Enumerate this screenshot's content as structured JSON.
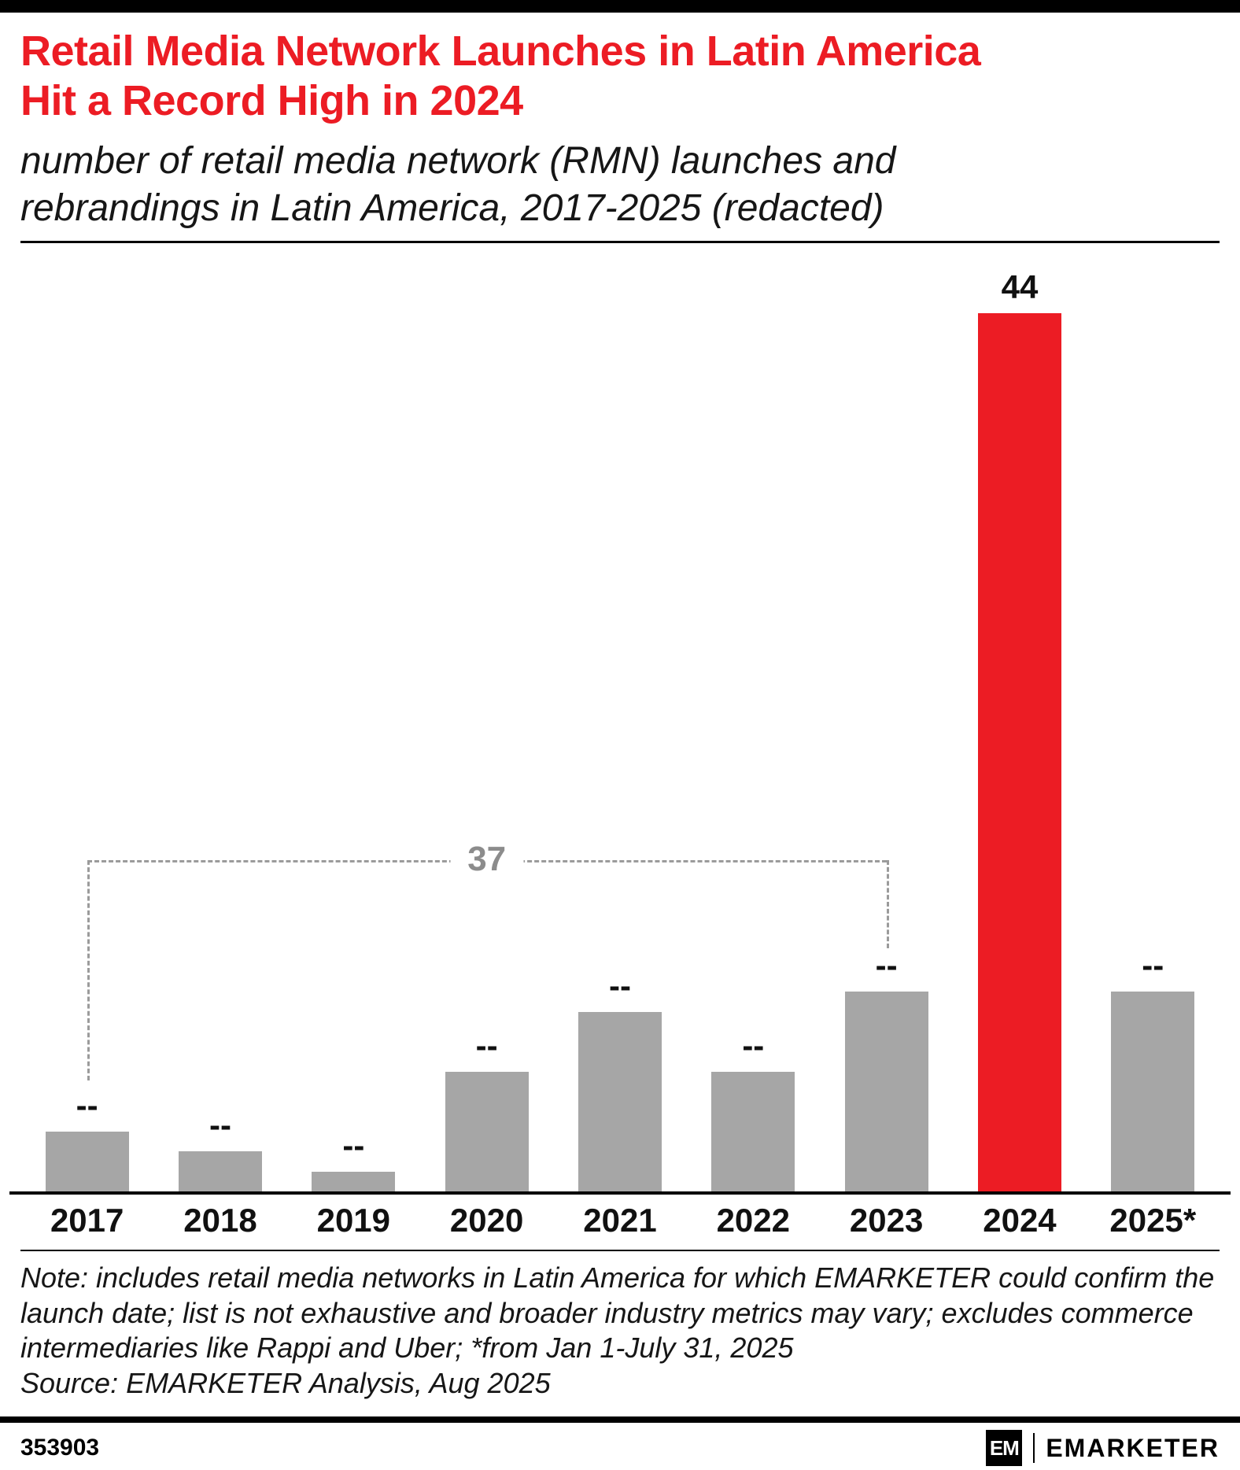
{
  "header": {
    "title_line1": "Retail Media Network Launches in Latin America",
    "title_line2": "Hit a Record High in 2024",
    "subtitle_line1": "number of retail media network (RMN) launches and",
    "subtitle_line2": "rebrandings in Latin America, 2017-2025 (redacted)"
  },
  "chart_data": {
    "type": "bar",
    "title": "Retail Media Network Launches in Latin America Hit a Record High in 2024",
    "subtitle": "number of retail media network (RMN) launches and rebrandings in Latin America, 2017-2025 (redacted)",
    "categories": [
      "2017",
      "2018",
      "2019",
      "2020",
      "2021",
      "2022",
      "2023",
      "2024",
      "2025*"
    ],
    "labels": [
      "--",
      "--",
      "--",
      "--",
      "--",
      "--",
      "--",
      "44",
      "--"
    ],
    "values": [
      3,
      2,
      1,
      6,
      9,
      6,
      10,
      44,
      10
    ],
    "values_estimated": true,
    "ylim": [
      0,
      44
    ],
    "xlabel": "",
    "ylabel": "",
    "grid": false,
    "legend": false,
    "highlight_category": "2024",
    "colors": {
      "default": "#A6A6A6",
      "highlight": "#EC1C24"
    },
    "annotation": {
      "label": "37",
      "from": "2017",
      "to": "2023"
    }
  },
  "notes": {
    "note": "Note: includes retail media networks in Latin America for which EMARKETER could confirm the launch date; list is not exhaustive and broader industry metrics may vary; excludes commerce intermediaries like Rappi and Uber; *from Jan 1-July 31, 2025",
    "source": "Source: EMARKETER Analysis, Aug 2025"
  },
  "footer": {
    "chart_number": "353903",
    "logo_mark": "EM",
    "brand_name": "EMARKETER"
  },
  "colors": {
    "accent_red": "#EC1C24",
    "bar_gray": "#A6A6A6",
    "annotation_gray": "#8C8C8C"
  }
}
